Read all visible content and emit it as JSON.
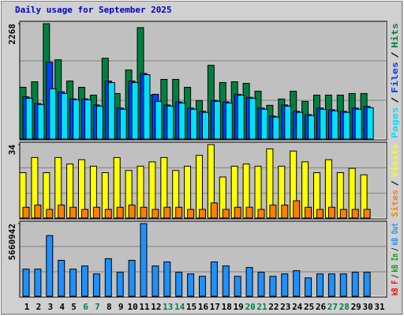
{
  "chart_data": [
    {
      "type": "bar",
      "title": "Daily usage for September 2025",
      "separator": "/",
      "ylim": [
        0,
        2268
      ],
      "yticks": [
        2268
      ],
      "series": [
        {
          "name": "Hits",
          "color": "#008040",
          "values": [
            1018,
            1126,
            2268,
            1558,
            1142,
            1018,
            864,
            1589,
            895,
            1358,
            2191,
            864,
            1173,
            1173,
            1018,
            756,
            1450,
            1111,
            1126,
            1095,
            941,
            663,
            787,
            941,
            740,
            864,
            864,
            864,
            895,
            895,
            null
          ]
        },
        {
          "name": "Files",
          "color": "#0040ff",
          "values": [
            830,
            700,
            1512,
            930,
            790,
            790,
            670,
            1140,
            610,
            1140,
            1290,
            880,
            670,
            730,
            610,
            545,
            760,
            730,
            880,
            820,
            610,
            450,
            670,
            545,
            480,
            610,
            575,
            545,
            610,
            640,
            null
          ]
        },
        {
          "name": "Pages",
          "color": "#00e0ff",
          "values": [
            802,
            679,
            988,
            895,
            772,
            772,
            648,
            1111,
            586,
            1111,
            1265,
            740,
            648,
            710,
            586,
            525,
            740,
            710,
            864,
            802,
            586,
            432,
            648,
            525,
            463,
            586,
            555,
            525,
            586,
            617,
            null
          ]
        }
      ]
    },
    {
      "type": "bar",
      "separator": "/",
      "ylim": [
        0,
        34
      ],
      "yticks": [
        34
      ],
      "series": [
        {
          "name": "Visits",
          "color": "#ffff00",
          "values": [
            21,
            28,
            21,
            28,
            25,
            27,
            24,
            21,
            28,
            22,
            24,
            26,
            28,
            22,
            24,
            29,
            34,
            19,
            24,
            25,
            24,
            32,
            24,
            31,
            26,
            21,
            27,
            21,
            23,
            20,
            null
          ]
        },
        {
          "name": "Sites",
          "color": "#ff8000",
          "values": [
            5,
            6,
            4,
            6,
            5,
            4,
            5,
            4,
            5,
            6,
            5,
            4,
            5,
            5,
            4,
            4,
            7,
            4,
            5,
            5,
            4,
            6,
            6,
            8,
            5,
            4,
            5,
            4,
            4,
            4,
            null
          ]
        }
      ]
    },
    {
      "type": "bar",
      "separator": "/",
      "ylim": [
        0,
        5660942
      ],
      "yticks": [
        5660942
      ],
      "categories": [
        "1",
        "2",
        "3",
        "4",
        "5",
        "6",
        "7",
        "8",
        "9",
        "10",
        "11",
        "12",
        "13",
        "14",
        "15",
        "16",
        "17",
        "18",
        "19",
        "20",
        "21",
        "22",
        "23",
        "24",
        "25",
        "26",
        "27",
        "28",
        "29",
        "30",
        "31"
      ],
      "highlighted": [
        5,
        6,
        12,
        13,
        19,
        20,
        26,
        27
      ],
      "highlight_color": "#008040",
      "series": [
        {
          "name": "kB Out",
          "color": "#1e90ff",
          "values": [
            2115000,
            2115000,
            4727800,
            2799400,
            2115000,
            2363900,
            1741800,
            2923800,
            1866200,
            2799400,
            5660942,
            2363900,
            2674900,
            1866200,
            1741800,
            1555200,
            2674900,
            2363900,
            1555200,
            2239500,
            1866200,
            1555200,
            1741800,
            1990700,
            1430800,
            1741800,
            1741800,
            1741800,
            1866200,
            1866200,
            null
          ]
        },
        {
          "name": "kB In",
          "color": "#00a000",
          "values": [
            null,
            null,
            null,
            null,
            null,
            null,
            null,
            null,
            null,
            null,
            null,
            null,
            null,
            null,
            null,
            null,
            null,
            null,
            null,
            null,
            null,
            null,
            null,
            null,
            null,
            null,
            null,
            null,
            null,
            null,
            null
          ]
        },
        {
          "name": "kB F",
          "color": "#ff0000",
          "values": [
            null,
            null,
            null,
            null,
            null,
            null,
            null,
            null,
            null,
            null,
            null,
            null,
            null,
            null,
            null,
            null,
            null,
            null,
            null,
            null,
            null,
            null,
            null,
            null,
            null,
            null,
            null,
            null,
            null,
            null,
            null
          ]
        }
      ]
    }
  ]
}
